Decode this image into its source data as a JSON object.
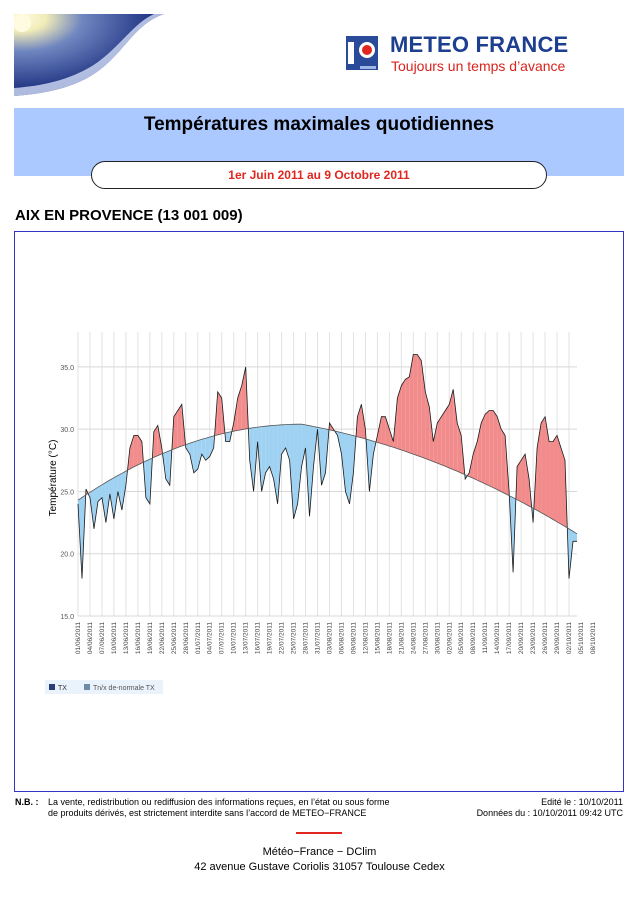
{
  "header": {
    "brand_name": "METEO FRANCE",
    "brand_tagline": "Toujours un temps d’avance",
    "title": "Températures maximales quotidiennes",
    "period": "1er Juin 2011 au 9 Octobre 2011"
  },
  "station": "AIX EN PROVENCE (13 001 009)",
  "colors": {
    "header_band": "#abc9ff",
    "above_normal": "#f28b8b",
    "below_normal": "#9fd2f2",
    "brand_blue": "#1d3f8f",
    "accent_red": "#e0261e"
  },
  "chart_data": {
    "type": "area",
    "ylabel": "Température (°C)",
    "ylim": [
      15,
      37
    ],
    "yticks": [
      "15.0",
      "20.0",
      "25.0",
      "30.0",
      "35.0"
    ],
    "x_tick_labels": [
      "01/06/2011",
      "04/06/2011",
      "07/06/2011",
      "10/06/2011",
      "13/06/2011",
      "16/06/2011",
      "19/06/2011",
      "22/06/2011",
      "25/06/2011",
      "28/06/2011",
      "01/07/2011",
      "04/07/2011",
      "07/07/2011",
      "10/07/2011",
      "13/07/2011",
      "16/07/2011",
      "19/07/2011",
      "22/07/2011",
      "25/07/2011",
      "28/07/2011",
      "31/07/2011",
      "03/08/2011",
      "06/08/2011",
      "09/08/2011",
      "12/08/2011",
      "15/08/2011",
      "18/08/2011",
      "21/08/2011",
      "24/08/2011",
      "27/08/2011",
      "30/08/2011",
      "02/09/2011",
      "05/09/2011",
      "08/09/2011",
      "11/09/2011",
      "14/09/2011",
      "17/09/2011",
      "20/09/2011",
      "23/09/2011",
      "26/09/2011",
      "29/09/2011",
      "02/10/2011",
      "05/10/2011",
      "08/10/2011"
    ],
    "grid": true,
    "legend_position": "bottom-left",
    "series": [
      {
        "name": "TX",
        "values": [
          24.0,
          18.0,
          25.2,
          24.5,
          22.0,
          24.2,
          24.5,
          22.5,
          24.8,
          22.8,
          25.0,
          23.5,
          25.5,
          28.5,
          29.5,
          29.5,
          29.0,
          24.5,
          24.0,
          29.8,
          30.3,
          28.5,
          26.0,
          25.5,
          31.0,
          31.5,
          32.0,
          28.5,
          28.0,
          26.5,
          26.8,
          28.0,
          27.5,
          27.8,
          28.5,
          33.0,
          32.5,
          29.0,
          29.0,
          30.5,
          32.5,
          33.5,
          35.0,
          27.5,
          25.0,
          29.0,
          25.0,
          26.5,
          27.0,
          26.0,
          24.0,
          28.0,
          28.5,
          27.5,
          22.8,
          24.0,
          27.0,
          28.5,
          23.0,
          27.0,
          30.0,
          25.5,
          26.5,
          30.5,
          30.0,
          29.5,
          28.0,
          25.0,
          24.0,
          26.5,
          31.0,
          32.0,
          30.0,
          25.0,
          28.0,
          29.5,
          31.0,
          31.0,
          30.0,
          29.0,
          32.5,
          33.5,
          34.0,
          34.2,
          36.0,
          36.0,
          35.5,
          33.0,
          31.8,
          29.0,
          30.5,
          31.0,
          31.5,
          32.0,
          33.2,
          30.5,
          29.5,
          26.0,
          26.5,
          28.0,
          29.0,
          30.5,
          31.2,
          31.5,
          31.5,
          31.0,
          30.0,
          29.5,
          25.0,
          18.5,
          27.0,
          27.5,
          28.0,
          26.0,
          22.5,
          28.5,
          30.5,
          31.0,
          29.0,
          29.0,
          29.5,
          28.5,
          27.5,
          18.0,
          21.0,
          21.0
        ],
        "color": "#000000"
      },
      {
        "name": "Tn/x de-normale TX",
        "start": 24.3,
        "peak": 30.4,
        "peak_day": 56,
        "end": 21.6,
        "color": "#555555"
      }
    ]
  },
  "legend": {
    "tx_label": "TX",
    "normal_label": "Tn/x de-normale TX"
  },
  "footer": {
    "nb_label": "N.B. :",
    "nb_line1": "La vente, redistribution ou rediffusion des informations reçues, en l’état ou sous forme",
    "nb_line2": "de produits dérivés, est strictement interdite sans l’accord de METEO−FRANCE",
    "edited": "Edité le : 10/10/2011",
    "data_date": "Données du : 10/10/2011 09:42 UTC",
    "org": "Météo−France − DClim",
    "address": "42 avenue Gustave Coriolis   31057 Toulouse Cedex"
  }
}
